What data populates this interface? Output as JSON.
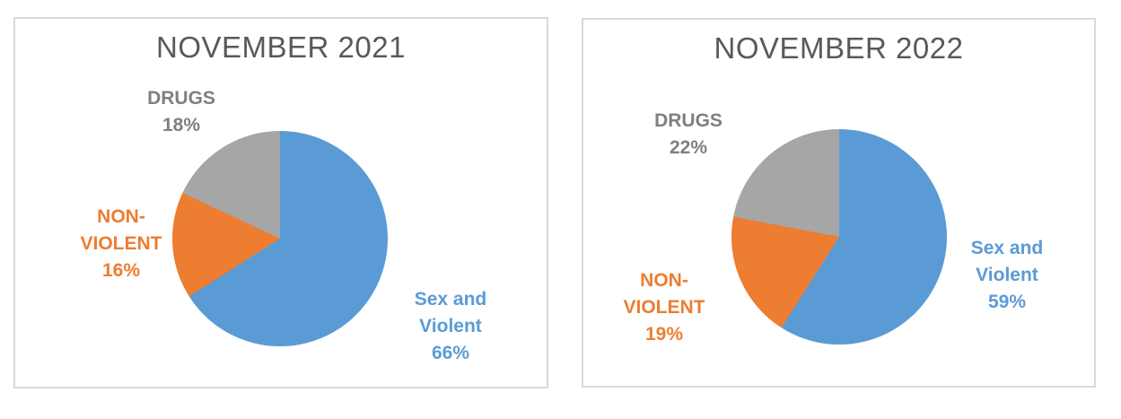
{
  "colors": {
    "blue": "#5B9BD5",
    "orange": "#ED7D31",
    "gray": "#A6A6A6",
    "title_text": "#595959",
    "drugs_label_text": "#7F7F7F",
    "panel_border": "#D9D9D9",
    "background": "#FFFFFF"
  },
  "chart_data": [
    {
      "type": "pie",
      "title": "NOVEMBER 2021",
      "start_angle": "12 o'clock",
      "direction": "clockwise",
      "legend": "none, direct labels outside slices",
      "slices": [
        {
          "label": "Sex and Violent",
          "value": 66,
          "pct": "66%",
          "color": "#5B9BD5",
          "label_color": "#5B9BD5",
          "label_text": "Sex and\nViolent\n66%"
        },
        {
          "label": "NON-VIOLENT",
          "value": 16,
          "pct": "16%",
          "color": "#ED7D31",
          "label_color": "#ED7D31",
          "label_text": "NON-\nVIOLENT\n16%"
        },
        {
          "label": "DRUGS",
          "value": 18,
          "pct": "18%",
          "color": "#A6A6A6",
          "label_color": "#7F7F7F",
          "label_text": "DRUGS\n18%"
        }
      ]
    },
    {
      "type": "pie",
      "title": "NOVEMBER 2022",
      "start_angle": "12 o'clock",
      "direction": "clockwise",
      "legend": "none, direct labels outside slices",
      "slices": [
        {
          "label": "Sex and Violent",
          "value": 59,
          "pct": "59%",
          "color": "#5B9BD5",
          "label_color": "#5B9BD5",
          "label_text": "Sex and\nViolent\n59%"
        },
        {
          "label": "NON-VIOLENT",
          "value": 19,
          "pct": "19%",
          "color": "#ED7D31",
          "label_color": "#ED7D31",
          "label_text": "NON-\nVIOLENT\n19%"
        },
        {
          "label": "DRUGS",
          "value": 22,
          "pct": "22%",
          "color": "#A6A6A6",
          "label_color": "#7F7F7F",
          "label_text": "DRUGS\n22%"
        }
      ]
    }
  ]
}
